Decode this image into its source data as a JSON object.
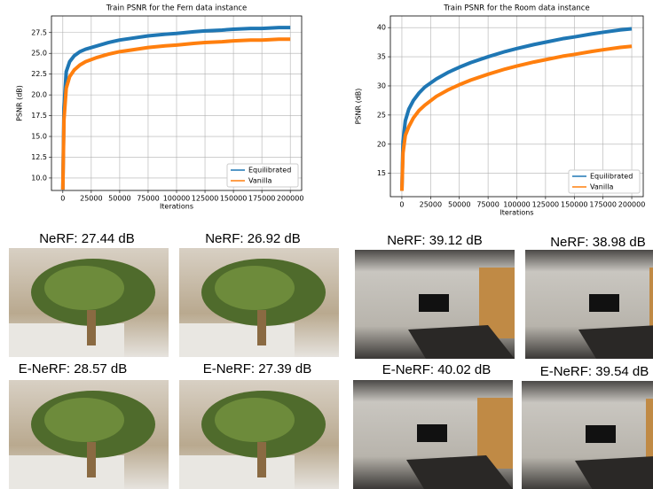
{
  "chart_data": [
    {
      "type": "line",
      "title": "Train PSNR for the Fern data instance",
      "xlabel": "Iterations",
      "ylabel": "PSNR (dB)",
      "x": [
        0,
        1000,
        3000,
        6000,
        10000,
        15000,
        20000,
        30000,
        40000,
        50000,
        60000,
        75000,
        90000,
        100000,
        115000,
        125000,
        140000,
        150000,
        165000,
        175000,
        190000,
        200000
      ],
      "series": [
        {
          "name": "Equilibrated",
          "color": "#1f77b4",
          "values": [
            8.6,
            18.5,
            22.8,
            24.0,
            24.7,
            25.2,
            25.5,
            25.9,
            26.3,
            26.6,
            26.8,
            27.1,
            27.3,
            27.4,
            27.6,
            27.7,
            27.8,
            27.9,
            28.0,
            28.0,
            28.1,
            28.1
          ]
        },
        {
          "name": "Vanilla",
          "color": "#ff7f0e",
          "values": [
            8.6,
            17.0,
            20.8,
            22.2,
            23.0,
            23.6,
            24.0,
            24.5,
            24.9,
            25.2,
            25.4,
            25.7,
            25.9,
            26.0,
            26.2,
            26.3,
            26.4,
            26.5,
            26.6,
            26.6,
            26.7,
            26.7
          ]
        }
      ],
      "xlim": [
        -10000,
        210000
      ],
      "xticks": [
        0,
        25000,
        50000,
        75000,
        100000,
        125000,
        150000,
        175000,
        200000
      ],
      "ylim": [
        8.5,
        29.5
      ],
      "yticks": [
        {
          "value": 10,
          "label": "10.0"
        },
        12.5,
        {
          "value": 15,
          "label": "15.0"
        },
        17.5,
        {
          "value": 20,
          "label": "20.0"
        },
        22.5,
        {
          "value": 25,
          "label": "25.0"
        },
        27.5
      ],
      "grid": true,
      "legend": "lower right"
    },
    {
      "type": "line",
      "title": "Train PSNR for the Room data instance",
      "xlabel": "Iterations",
      "ylabel": "PSNR (dB)",
      "x": [
        0,
        1000,
        3000,
        6000,
        10000,
        15000,
        20000,
        30000,
        40000,
        50000,
        60000,
        75000,
        90000,
        100000,
        115000,
        125000,
        140000,
        150000,
        165000,
        175000,
        190000,
        200000
      ],
      "series": [
        {
          "name": "Equilibrated",
          "color": "#1f77b4",
          "values": [
            12,
            20.5,
            24,
            26,
            27.5,
            28.8,
            29.8,
            31.2,
            32.3,
            33.2,
            34,
            35,
            35.9,
            36.4,
            37.1,
            37.5,
            38.1,
            38.4,
            38.9,
            39.2,
            39.6,
            39.8
          ]
        },
        {
          "name": "Vanilla",
          "color": "#ff7f0e",
          "values": [
            12,
            18.5,
            21.5,
            23,
            24.5,
            25.8,
            26.7,
            28.2,
            29.3,
            30.2,
            31,
            32,
            32.9,
            33.4,
            34.1,
            34.5,
            35.1,
            35.4,
            35.9,
            36.2,
            36.6,
            36.8
          ]
        }
      ],
      "xlim": [
        -10000,
        210000
      ],
      "xticks": [
        0,
        25000,
        50000,
        75000,
        100000,
        125000,
        150000,
        175000,
        200000
      ],
      "ylim": [
        11,
        42
      ],
      "yticks": [
        15,
        20,
        25,
        30,
        35,
        40
      ],
      "grid": true,
      "legend": "lower right"
    }
  ],
  "image_captions": {
    "row1": [
      "NeRF: 27.44 dB",
      "NeRF: 26.92 dB",
      "NeRF: 39.12 dB",
      "NeRF: 38.98 dB"
    ],
    "row2": [
      "E-NeRF: 28.57 dB",
      "E-NeRF: 27.39 dB",
      "E-NeRF: 40.02 dB",
      "E-NeRF: 39.54 dB"
    ]
  }
}
